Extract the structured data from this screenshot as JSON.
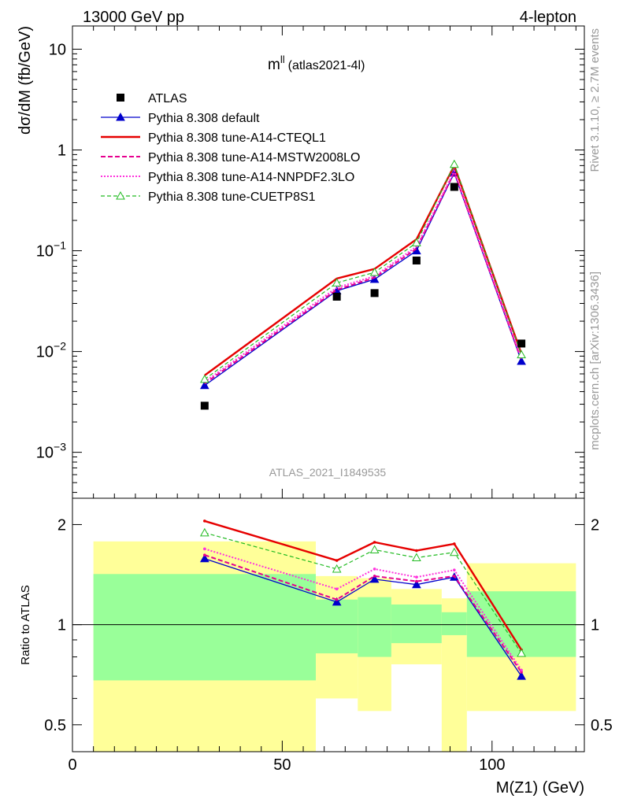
{
  "header": {
    "energy": "13000 GeV pp",
    "process": "4-lepton",
    "obs_main": "m",
    "obs_sup": "ll",
    "obs_ref": "(atlas2021-4l)",
    "analysis_id": "ATLAS_2021_I1849535"
  },
  "side_text": {
    "rivet": "Rivet 3.1.10, ≥ 2.7M events",
    "mcplots": "mcplots.cern.ch [arXiv:1306.3436]"
  },
  "colors": {
    "data": "#000000",
    "default": "#0000cc",
    "cteql1": "#e60000",
    "mstw": "#e6008f",
    "nnpdf": "#ff33dd",
    "cuetp8s1": "#22bb22",
    "band_inner": "#99ff99",
    "band_outer": "#ffff99"
  },
  "chart_data": [
    {
      "type": "line",
      "title": "",
      "xlabel": "",
      "ylabel": "dσ/dM (fb/GeV)",
      "yscale": "log",
      "ylim": [
        0.00035,
        17
      ],
      "xlim": [
        0,
        122
      ],
      "y_ticks": [
        {
          "value": 10,
          "label": "10"
        },
        {
          "value": 1,
          "label": "1"
        },
        {
          "value": 0.1,
          "label": "10",
          "exp": "−1"
        },
        {
          "value": 0.01,
          "label": "10",
          "exp": "−2"
        },
        {
          "value": 0.001,
          "label": "10",
          "exp": "−3"
        }
      ],
      "legend_placement": "top-left",
      "x": [
        31.5,
        63.0,
        72.0,
        82.0,
        91.0,
        107.0
      ],
      "data_series": {
        "name": "ATLAS",
        "values": [
          0.0029,
          0.035,
          0.038,
          0.08,
          0.43,
          0.012
        ]
      },
      "series": [
        {
          "name": "Pythia 8.308 default",
          "values": [
            0.0046,
            0.04,
            0.052,
            0.1,
            0.59,
            0.008
          ]
        },
        {
          "name": "Pythia 8.308 tune-A14-CTEQL1",
          "values": [
            0.0058,
            0.053,
            0.066,
            0.13,
            0.7,
            0.0095
          ]
        },
        {
          "name": "Pythia 8.308 tune-A14-MSTW2008LO",
          "values": [
            0.0048,
            0.041,
            0.054,
            0.105,
            0.6,
            0.0082
          ]
        },
        {
          "name": "Pythia 8.308 tune-A14-NNPDF2.3LO",
          "values": [
            0.005,
            0.043,
            0.056,
            0.11,
            0.62,
            0.0085
          ]
        },
        {
          "name": "Pythia 8.308 tune-CUETP8S1",
          "values": [
            0.0053,
            0.048,
            0.061,
            0.12,
            0.72,
            0.0093
          ]
        }
      ]
    },
    {
      "type": "line",
      "title": "",
      "xlabel": "M(Z1) (GeV)",
      "ylabel": "Ratio to ATLAS",
      "yscale": "log",
      "ylim": [
        0.415,
        2.4
      ],
      "xlim": [
        0,
        122
      ],
      "x_ticks": [
        {
          "value": 0,
          "label": "0"
        },
        {
          "value": 50,
          "label": "50"
        },
        {
          "value": 100,
          "label": "100"
        }
      ],
      "y_ticks": [
        {
          "value": 2,
          "label": "2"
        },
        {
          "value": 1,
          "label": "1"
        },
        {
          "value": 0.5,
          "label": "0.5"
        }
      ],
      "x": [
        31.5,
        63.0,
        72.0,
        82.0,
        91.0,
        107.0
      ],
      "bands": [
        {
          "lo": 5,
          "hi": 58,
          "inner": [
            0.68,
            1.42
          ],
          "outer": [
            0.36,
            1.78
          ]
        },
        {
          "lo": 58,
          "hi": 68,
          "inner": [
            0.82,
            1.19
          ],
          "outer": [
            0.6,
            1.4
          ]
        },
        {
          "lo": 68,
          "hi": 76,
          "inner": [
            0.8,
            1.21
          ],
          "outer": [
            0.55,
            1.38
          ]
        },
        {
          "lo": 76,
          "hi": 88,
          "inner": [
            0.88,
            1.15
          ],
          "outer": [
            0.76,
            1.28
          ]
        },
        {
          "lo": 88,
          "hi": 94,
          "inner": [
            0.93,
            1.09
          ],
          "outer": [
            0.36,
            1.2
          ]
        },
        {
          "lo": 94,
          "hi": 120,
          "inner": [
            0.8,
            1.26
          ],
          "outer": [
            0.55,
            1.53
          ]
        }
      ],
      "series": [
        {
          "name": "Pythia 8.308 default",
          "values": [
            1.58,
            1.17,
            1.37,
            1.32,
            1.39,
            0.7
          ]
        },
        {
          "name": "Pythia 8.308 tune-A14-CTEQL1",
          "values": [
            2.05,
            1.56,
            1.77,
            1.67,
            1.75,
            0.84
          ]
        },
        {
          "name": "Pythia 8.308 tune-A14-MSTW2008LO",
          "values": [
            1.62,
            1.19,
            1.4,
            1.35,
            1.4,
            0.72
          ]
        },
        {
          "name": "Pythia 8.308 tune-A14-NNPDF2.3LO",
          "values": [
            1.69,
            1.28,
            1.47,
            1.39,
            1.46,
            0.73
          ]
        },
        {
          "name": "Pythia 8.308 tune-CUETP8S1",
          "values": [
            1.89,
            1.47,
            1.68,
            1.59,
            1.65,
            0.82
          ]
        }
      ]
    }
  ]
}
